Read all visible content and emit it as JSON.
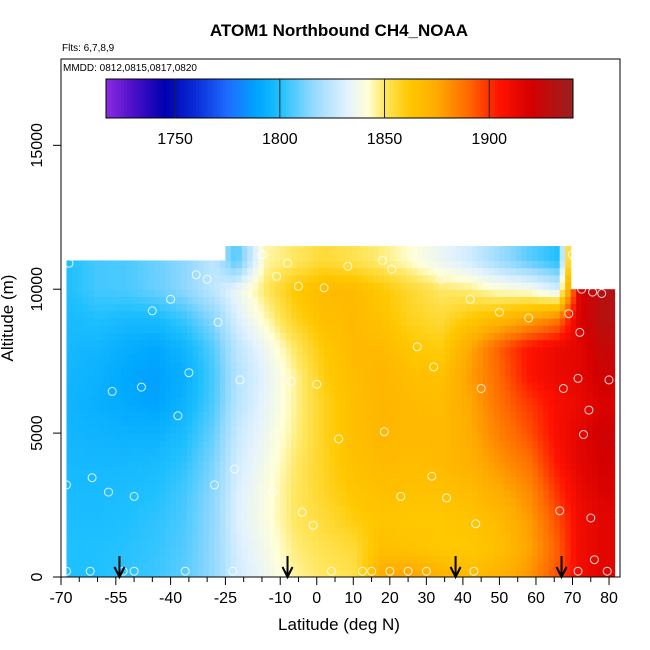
{
  "chart_data": {
    "type": "heatmap",
    "title": "ATOM1 Northbound CH4_NOAA",
    "flights_label": "Flts: 6,7,8,9",
    "mmdd_label": "MMDD: 0812,0815,0817,0820",
    "xlabel": "Latitude (deg N)",
    "ylabel": "Altitude (m)",
    "xlim": [
      -70,
      83
    ],
    "ylim": [
      0,
      18000
    ],
    "x_ticks": [
      -70,
      -55,
      -40,
      -25,
      -10,
      0,
      10,
      20,
      30,
      40,
      50,
      60,
      70,
      80
    ],
    "x_minor_ticks": [
      -65,
      -60,
      -50,
      -45,
      -35,
      -30,
      -20,
      -15,
      -5,
      5,
      15,
      25,
      35,
      45,
      55,
      65,
      75
    ],
    "y_ticks": [
      0,
      5000,
      10000,
      15000
    ],
    "colorbar": {
      "range": [
        1717,
        1940
      ],
      "ticks": [
        1750,
        1800,
        1850,
        1900
      ],
      "stops": [
        {
          "v": 1717,
          "c": "#8a2be2"
        },
        {
          "v": 1730,
          "c": "#4b10c8"
        },
        {
          "v": 1745,
          "c": "#0000b0"
        },
        {
          "v": 1760,
          "c": "#0a2cd8"
        },
        {
          "v": 1775,
          "c": "#1e6cff"
        },
        {
          "v": 1790,
          "c": "#00a8ff"
        },
        {
          "v": 1800,
          "c": "#1fc0ff"
        },
        {
          "v": 1815,
          "c": "#8fd8ff"
        },
        {
          "v": 1832,
          "c": "#e2f2ff"
        },
        {
          "v": 1842,
          "c": "#ffffd8"
        },
        {
          "v": 1850,
          "c": "#ffe760"
        },
        {
          "v": 1862,
          "c": "#ffc800"
        },
        {
          "v": 1875,
          "c": "#ffaa00"
        },
        {
          "v": 1890,
          "c": "#ff6a00"
        },
        {
          "v": 1905,
          "c": "#ff1200"
        },
        {
          "v": 1920,
          "c": "#d40000"
        },
        {
          "v": 1940,
          "c": "#9a2020"
        }
      ]
    },
    "profile_latitudes": [
      -54,
      -8,
      38,
      67
    ],
    "field_columns": [
      {
        "lat": -68,
        "top": 11000,
        "v": [
          1800,
          1800,
          1799,
          1798,
          1797,
          1796,
          1795,
          1796,
          1797,
          1798,
          1800
        ]
      },
      {
        "lat": -60,
        "top": 11000,
        "v": [
          1800,
          1800,
          1799,
          1798,
          1797,
          1795,
          1793,
          1794,
          1796,
          1800,
          1805
        ]
      },
      {
        "lat": -52,
        "top": 11000,
        "v": [
          1802,
          1801,
          1800,
          1799,
          1797,
          1794,
          1791,
          1790,
          1792,
          1798,
          1806
        ]
      },
      {
        "lat": -44,
        "top": 11000,
        "v": [
          1804,
          1803,
          1802,
          1800,
          1798,
          1794,
          1789,
          1788,
          1790,
          1798,
          1810
        ]
      },
      {
        "lat": -36,
        "top": 11000,
        "v": [
          1808,
          1807,
          1806,
          1805,
          1802,
          1799,
          1795,
          1793,
          1796,
          1804,
          1815
        ]
      },
      {
        "lat": -28,
        "top": 11000,
        "v": [
          1816,
          1816,
          1816,
          1815,
          1813,
          1810,
          1807,
          1806,
          1808,
          1815,
          1825
        ]
      },
      {
        "lat": -22,
        "top": 11400,
        "v": [
          1828,
          1829,
          1831,
          1830,
          1828,
          1826,
          1823,
          1822,
          1824,
          1830,
          1835,
          1806
        ]
      },
      {
        "lat": -14,
        "top": 11400,
        "v": [
          1836,
          1838,
          1840,
          1840,
          1838,
          1836,
          1834,
          1833,
          1836,
          1844,
          1850,
          1845
        ]
      },
      {
        "lat": -6,
        "top": 11400,
        "v": [
          1846,
          1848,
          1850,
          1850,
          1849,
          1847,
          1846,
          1846,
          1850,
          1858,
          1862,
          1850
        ]
      },
      {
        "lat": 2,
        "top": 11400,
        "v": [
          1850,
          1852,
          1855,
          1857,
          1858,
          1858,
          1858,
          1860,
          1862,
          1866,
          1868,
          1855
        ]
      },
      {
        "lat": 10,
        "top": 11400,
        "v": [
          1852,
          1855,
          1860,
          1863,
          1865,
          1866,
          1866,
          1867,
          1868,
          1868,
          1868,
          1852
        ]
      },
      {
        "lat": 18,
        "top": 11400,
        "v": [
          1875,
          1866,
          1863,
          1866,
          1868,
          1870,
          1870,
          1870,
          1868,
          1864,
          1862,
          1848
        ]
      },
      {
        "lat": 26,
        "top": 11400,
        "v": [
          1878,
          1864,
          1862,
          1865,
          1867,
          1868,
          1868,
          1866,
          1862,
          1858,
          1856,
          1842
        ]
      },
      {
        "lat": 34,
        "top": 11400,
        "v": [
          1872,
          1862,
          1862,
          1865,
          1868,
          1868,
          1867,
          1865,
          1860,
          1855,
          1850,
          1835
        ]
      },
      {
        "lat": 42,
        "top": 11400,
        "v": [
          1868,
          1862,
          1864,
          1868,
          1872,
          1874,
          1875,
          1878,
          1875,
          1862,
          1848,
          1828
        ]
      },
      {
        "lat": 50,
        "top": 11400,
        "v": [
          1872,
          1866,
          1868,
          1874,
          1880,
          1885,
          1888,
          1890,
          1892,
          1868,
          1842,
          1818
        ]
      },
      {
        "lat": 58,
        "top": 11400,
        "v": [
          1880,
          1876,
          1878,
          1882,
          1888,
          1894,
          1898,
          1905,
          1905,
          1875,
          1840,
          1808
        ]
      },
      {
        "lat": 66,
        "top": 11400,
        "v": [
          1895,
          1892,
          1895,
          1900,
          1905,
          1908,
          1908,
          1912,
          1912,
          1885,
          1830,
          1800
        ]
      },
      {
        "lat": 72,
        "top": 10000,
        "v": [
          1910,
          1910,
          1910,
          1912,
          1915,
          1915,
          1912,
          1915,
          1915,
          1918
        ]
      },
      {
        "lat": 78,
        "top": 10000,
        "v": [
          1915,
          1915,
          1915,
          1918,
          1920,
          1922,
          1918,
          1922,
          1925,
          1930
        ]
      }
    ],
    "observations": [
      {
        "lat": -68.5,
        "alt": 200
      },
      {
        "lat": -68.5,
        "alt": 3200
      },
      {
        "lat": -67.8,
        "alt": 10900
      },
      {
        "lat": -62,
        "alt": 200
      },
      {
        "lat": -61.5,
        "alt": 3450
      },
      {
        "lat": -57,
        "alt": 2950
      },
      {
        "lat": -56,
        "alt": 6450
      },
      {
        "lat": -53,
        "alt": 200
      },
      {
        "lat": -50,
        "alt": 200
      },
      {
        "lat": -50,
        "alt": 2800
      },
      {
        "lat": -48,
        "alt": 6600
      },
      {
        "lat": -45,
        "alt": 9250
      },
      {
        "lat": -40,
        "alt": 9650
      },
      {
        "lat": -38,
        "alt": 5600
      },
      {
        "lat": -36,
        "alt": 200
      },
      {
        "lat": -35,
        "alt": 7100
      },
      {
        "lat": -33,
        "alt": 10500
      },
      {
        "lat": -30,
        "alt": 10350
      },
      {
        "lat": -28,
        "alt": 3200
      },
      {
        "lat": -27,
        "alt": 8850
      },
      {
        "lat": -23,
        "alt": 200
      },
      {
        "lat": -22.5,
        "alt": 3750
      },
      {
        "lat": -21,
        "alt": 6850
      },
      {
        "lat": -15,
        "alt": 11200
      },
      {
        "lat": -12,
        "alt": 2950
      },
      {
        "lat": -11,
        "alt": 10450
      },
      {
        "lat": -9,
        "alt": 200
      },
      {
        "lat": -8,
        "alt": 10900
      },
      {
        "lat": -7,
        "alt": 6800
      },
      {
        "lat": -5,
        "alt": 10100
      },
      {
        "lat": -4,
        "alt": 2250
      },
      {
        "lat": -1,
        "alt": 1800
      },
      {
        "lat": 0,
        "alt": 6700
      },
      {
        "lat": 2,
        "alt": 10050
      },
      {
        "lat": 4,
        "alt": 200
      },
      {
        "lat": 6,
        "alt": 4800
      },
      {
        "lat": 8.5,
        "alt": 10800
      },
      {
        "lat": 12.5,
        "alt": 200
      },
      {
        "lat": 15,
        "alt": 200
      },
      {
        "lat": 18,
        "alt": 11000
      },
      {
        "lat": 18.5,
        "alt": 5050
      },
      {
        "lat": 20,
        "alt": 200
      },
      {
        "lat": 20.5,
        "alt": 10700
      },
      {
        "lat": 23,
        "alt": 2800
      },
      {
        "lat": 25,
        "alt": 200
      },
      {
        "lat": 27.5,
        "alt": 8000
      },
      {
        "lat": 30,
        "alt": 200
      },
      {
        "lat": 31.5,
        "alt": 3500
      },
      {
        "lat": 32,
        "alt": 7300
      },
      {
        "lat": 34,
        "alt": 10350
      },
      {
        "lat": 35.5,
        "alt": 2750
      },
      {
        "lat": 42,
        "alt": 9650
      },
      {
        "lat": 43,
        "alt": 200
      },
      {
        "lat": 43.5,
        "alt": 1850
      },
      {
        "lat": 45,
        "alt": 6550
      },
      {
        "lat": 50,
        "alt": 9200
      },
      {
        "lat": 58,
        "alt": 9000
      },
      {
        "lat": 66.5,
        "alt": 2300
      },
      {
        "lat": 67.5,
        "alt": 6550
      },
      {
        "lat": 69,
        "alt": 9150
      },
      {
        "lat": 70,
        "alt": 11200
      },
      {
        "lat": 71.5,
        "alt": 200
      },
      {
        "lat": 71.5,
        "alt": 6900
      },
      {
        "lat": 72,
        "alt": 8500
      },
      {
        "lat": 72.5,
        "alt": 10000
      },
      {
        "lat": 73,
        "alt": 4950
      },
      {
        "lat": 74.5,
        "alt": 5800
      },
      {
        "lat": 75,
        "alt": 2050
      },
      {
        "lat": 75.5,
        "alt": 9900
      },
      {
        "lat": 76,
        "alt": 600
      },
      {
        "lat": 78,
        "alt": 9850
      },
      {
        "lat": 79.5,
        "alt": 200
      },
      {
        "lat": 80,
        "alt": 6850
      }
    ]
  }
}
